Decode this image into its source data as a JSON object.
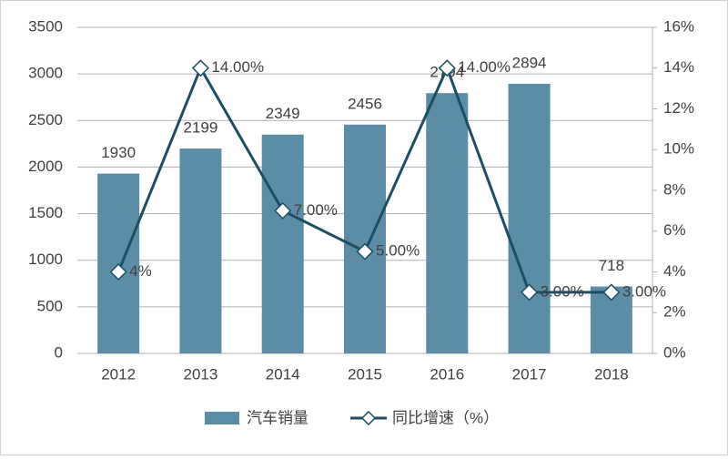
{
  "chart_data": {
    "type": "bar-line",
    "categories": [
      "2012",
      "2013",
      "2014",
      "2015",
      "2016",
      "2017",
      "2018"
    ],
    "series": [
      {
        "name": "汽车销量",
        "type": "bar",
        "color": "#5b8ea6",
        "values": [
          1930,
          2199,
          2349,
          2456,
          2794,
          2894,
          718
        ]
      },
      {
        "name": "同比增速（%）",
        "type": "line",
        "axis": "y2",
        "color": "#1d4e63",
        "values": [
          4,
          14,
          7,
          5,
          14,
          3,
          3
        ],
        "value_labels": [
          "4%",
          "14.00%",
          "7.00%",
          "5.00%",
          "14.00%",
          "3.00%",
          "3.00%"
        ]
      }
    ],
    "ylim": [
      0,
      3500
    ],
    "yticks": [
      0,
      500,
      1000,
      1500,
      2000,
      2500,
      3000,
      3500
    ],
    "y2lim": [
      0,
      16
    ],
    "y2ticks": [
      {
        "value": 0,
        "label": "0%"
      },
      {
        "value": 2,
        "label": "2%"
      },
      {
        "value": 4,
        "label": "4%"
      },
      {
        "value": 6,
        "label": "6%"
      },
      {
        "value": 8,
        "label": "8%"
      },
      {
        "value": 10,
        "label": "10%"
      },
      {
        "value": 12,
        "label": "12%"
      },
      {
        "value": 14,
        "label": "14%"
      },
      {
        "value": 16,
        "label": "16%"
      }
    ],
    "grid": true
  }
}
